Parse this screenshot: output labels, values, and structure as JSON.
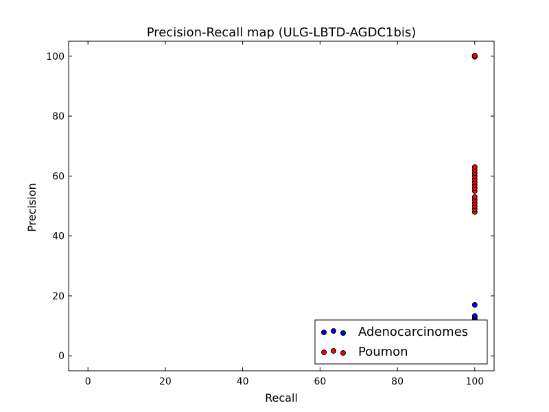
{
  "chart_data": {
    "type": "scatter",
    "title": "Precision-Recall map (ULG-LBTD-AGDC1bis)",
    "xlabel": "Recall",
    "ylabel": "Precision",
    "xlim": [
      -5,
      105
    ],
    "ylim": [
      -5,
      105
    ],
    "xticks": [
      0,
      20,
      40,
      60,
      80,
      100
    ],
    "yticks": [
      0,
      20,
      40,
      60,
      80,
      100
    ],
    "grid": false,
    "legend_position": "lower-right",
    "series": [
      {
        "name": "Adenocarcinomes",
        "color": "#0000ff",
        "x": [
          100,
          100,
          100,
          100,
          100,
          100,
          100,
          100,
          100,
          100,
          100,
          100,
          100,
          100
        ],
        "y": [
          1,
          2,
          3,
          4,
          5,
          6,
          7,
          12,
          12.5,
          13,
          13.3,
          17,
          100,
          100
        ]
      },
      {
        "name": "Poumon",
        "color": "#ff0000",
        "x": [
          100,
          100,
          100,
          100,
          100,
          100,
          100,
          100,
          100,
          100,
          100,
          100,
          100,
          100,
          100,
          100,
          100,
          100,
          100,
          100,
          100
        ],
        "y": [
          48,
          49,
          50,
          51,
          52,
          53,
          55,
          56,
          57,
          58,
          59,
          60,
          61,
          62,
          63,
          99.8,
          99.9,
          100,
          100,
          100.1,
          100.2
        ]
      }
    ]
  }
}
